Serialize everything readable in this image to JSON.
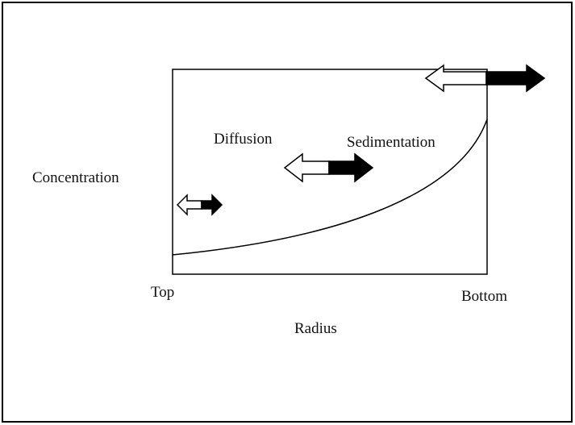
{
  "diagram": {
    "y_label": "Concentration",
    "x_label": "Radius",
    "x_start_label": "Top",
    "x_end_label": "Bottom",
    "labels": [
      "Diffusion",
      "Sedimentation"
    ]
  }
}
